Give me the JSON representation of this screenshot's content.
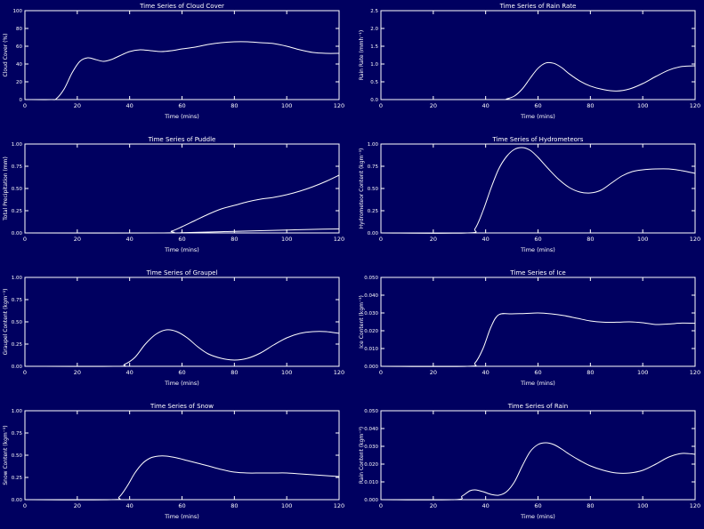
{
  "chart_data": [
    {
      "type": "line",
      "title": "Time Series of Cloud Cover",
      "xlabel": "Time (mins)",
      "ylabel": "Cloud Cover (%)",
      "xlim": [
        0,
        120
      ],
      "ylim": [
        0,
        100
      ],
      "xticks": [
        "0",
        "20",
        "40",
        "60",
        "80",
        "100",
        "120"
      ],
      "yticks": [
        "0",
        "20",
        "40",
        "60",
        "80",
        "100"
      ],
      "series": [
        {
          "x": [
            0,
            10,
            12,
            15,
            18,
            21,
            24,
            27,
            30,
            33,
            36,
            40,
            44,
            48,
            52,
            56,
            60,
            65,
            70,
            75,
            80,
            85,
            90,
            95,
            100,
            105,
            110,
            115,
            120
          ],
          "values": [
            0,
            0,
            1,
            12,
            30,
            43,
            47,
            45,
            43,
            45,
            49,
            54,
            56,
            55,
            54,
            55,
            57,
            59,
            62,
            64,
            65,
            65,
            64,
            63,
            60,
            56,
            53,
            52,
            52
          ]
        }
      ]
    },
    {
      "type": "line",
      "title": "Time Series of Rain Rate",
      "xlabel": "Time (mins)",
      "ylabel": "Rain Rate (mmh⁻¹)",
      "xlim": [
        0,
        120
      ],
      "ylim": [
        0,
        2.5
      ],
      "xticks": [
        "0",
        "20",
        "40",
        "60",
        "80",
        "100",
        "120"
      ],
      "yticks": [
        "0.0",
        "0.5",
        "1.0",
        "1.5",
        "2.0",
        "2.5"
      ],
      "series": [
        {
          "x": [
            0,
            45,
            48,
            51,
            54,
            57,
            60,
            63,
            66,
            69,
            72,
            76,
            80,
            85,
            90,
            95,
            100,
            105,
            110,
            115,
            120
          ],
          "values": [
            0,
            0,
            0.02,
            0.1,
            0.3,
            0.6,
            0.88,
            1.03,
            1.02,
            0.9,
            0.72,
            0.52,
            0.38,
            0.28,
            0.24,
            0.3,
            0.45,
            0.65,
            0.83,
            0.93,
            0.95
          ]
        }
      ]
    },
    {
      "type": "line",
      "title": "Time Series of Puddle",
      "xlabel": "Time (mins)",
      "ylabel": "Total Precipitation (mm)",
      "xlim": [
        0,
        120
      ],
      "ylim": [
        0,
        1.0
      ],
      "xticks": [
        "0",
        "20",
        "40",
        "60",
        "80",
        "100",
        "120"
      ],
      "yticks": [
        "0.00",
        "0.25",
        "0.50",
        "0.75",
        "1.00"
      ],
      "series": [
        {
          "x": [
            0,
            52,
            56,
            60,
            65,
            70,
            75,
            80,
            85,
            90,
            95,
            100,
            105,
            110,
            115,
            120
          ],
          "values": [
            0,
            0,
            0.02,
            0.07,
            0.14,
            0.21,
            0.27,
            0.31,
            0.35,
            0.38,
            0.4,
            0.43,
            0.47,
            0.52,
            0.58,
            0.65
          ]
        },
        {
          "x": [
            0,
            55,
            60,
            70,
            80,
            90,
            100,
            110,
            120
          ],
          "values": [
            0,
            0,
            0.003,
            0.01,
            0.018,
            0.025,
            0.033,
            0.04,
            0.045
          ]
        }
      ]
    },
    {
      "type": "line",
      "title": "Time Series of Hydrometeors",
      "xlabel": "Time (mins)",
      "ylabel": "Hydrometeor Content (kgm⁻³)",
      "xlim": [
        0,
        120
      ],
      "ylim": [
        0,
        1.0
      ],
      "xticks": [
        "0",
        "20",
        "40",
        "60",
        "80",
        "100",
        "120"
      ],
      "yticks": [
        "0.00",
        "0.25",
        "0.50",
        "0.75",
        "1.00"
      ],
      "series": [
        {
          "x": [
            0,
            33,
            36,
            39,
            42,
            45,
            48,
            51,
            54,
            57,
            60,
            64,
            68,
            72,
            76,
            80,
            84,
            88,
            92,
            96,
            100,
            105,
            110,
            115,
            120
          ],
          "values": [
            0,
            0,
            0.05,
            0.25,
            0.5,
            0.72,
            0.86,
            0.94,
            0.96,
            0.93,
            0.85,
            0.72,
            0.6,
            0.51,
            0.46,
            0.45,
            0.48,
            0.56,
            0.64,
            0.69,
            0.71,
            0.72,
            0.72,
            0.7,
            0.67
          ]
        }
      ]
    },
    {
      "type": "line",
      "title": "Time Series of Graupel",
      "xlabel": "Time (mins)",
      "ylabel": "Graupel Content (kgm⁻³)",
      "xlim": [
        0,
        120
      ],
      "ylim": [
        0,
        1.0
      ],
      "xticks": [
        "0",
        "20",
        "40",
        "60",
        "80",
        "100",
        "120"
      ],
      "yticks": [
        "0.00",
        "0.25",
        "0.50",
        "0.75",
        "1.00"
      ],
      "series": [
        {
          "x": [
            0,
            35,
            38,
            42,
            46,
            50,
            54,
            58,
            62,
            66,
            70,
            75,
            80,
            85,
            90,
            95,
            100,
            105,
            110,
            115,
            120
          ],
          "values": [
            0,
            0,
            0.02,
            0.1,
            0.25,
            0.36,
            0.41,
            0.39,
            0.32,
            0.22,
            0.14,
            0.09,
            0.07,
            0.09,
            0.15,
            0.24,
            0.32,
            0.37,
            0.39,
            0.39,
            0.37
          ]
        }
      ]
    },
    {
      "type": "line",
      "title": "Time Series of Ice",
      "xlabel": "Time (mins)",
      "ylabel": "Ice Content (kgm⁻³)",
      "xlim": [
        0,
        120
      ],
      "ylim": [
        0,
        0.05
      ],
      "xticks": [
        "0",
        "20",
        "40",
        "60",
        "80",
        "100",
        "120"
      ],
      "yticks": [
        "0.000",
        "0.010",
        "0.020",
        "0.030",
        "0.040",
        "0.050"
      ],
      "series": [
        {
          "x": [
            0,
            33,
            36,
            39,
            42,
            45,
            50,
            55,
            60,
            65,
            70,
            75,
            80,
            85,
            90,
            95,
            100,
            105,
            110,
            115,
            120
          ],
          "values": [
            0,
            0,
            0.002,
            0.01,
            0.022,
            0.029,
            0.0295,
            0.0297,
            0.03,
            0.0295,
            0.0285,
            0.027,
            0.0255,
            0.0248,
            0.0248,
            0.025,
            0.0245,
            0.0235,
            0.0238,
            0.0243,
            0.0242
          ]
        }
      ]
    },
    {
      "type": "line",
      "title": "Time Series of Snow",
      "xlabel": "Time (mins)",
      "ylabel": "Snow Content (kgm⁻³)",
      "xlim": [
        0,
        120
      ],
      "ylim": [
        0,
        1.0
      ],
      "xticks": [
        "0",
        "20",
        "40",
        "60",
        "80",
        "100",
        "120"
      ],
      "yticks": [
        "0.00",
        "0.25",
        "0.50",
        "0.75",
        "1.00"
      ],
      "series": [
        {
          "x": [
            0,
            33,
            36,
            39,
            42,
            45,
            48,
            51,
            54,
            58,
            62,
            66,
            70,
            75,
            80,
            85,
            90,
            95,
            100,
            105,
            110,
            115,
            120
          ],
          "values": [
            0,
            0,
            0.03,
            0.15,
            0.3,
            0.41,
            0.47,
            0.49,
            0.49,
            0.47,
            0.44,
            0.41,
            0.38,
            0.34,
            0.31,
            0.3,
            0.3,
            0.3,
            0.3,
            0.29,
            0.28,
            0.27,
            0.26
          ]
        }
      ]
    },
    {
      "type": "line",
      "title": "Time Series of Rain",
      "xlabel": "Time (mins)",
      "ylabel": "Rain Content (kgm⁻³)",
      "xlim": [
        0,
        120
      ],
      "ylim": [
        0,
        0.05
      ],
      "xticks": [
        "0",
        "20",
        "40",
        "60",
        "80",
        "100",
        "120"
      ],
      "yticks": [
        "0.000",
        "0.010",
        "0.020",
        "0.030",
        "0.040",
        "0.050"
      ],
      "series": [
        {
          "x": [
            0,
            28,
            31,
            34,
            36,
            39,
            42,
            45,
            48,
            51,
            54,
            57,
            60,
            63,
            66,
            69,
            72,
            76,
            80,
            85,
            90,
            95,
            100,
            105,
            110,
            115,
            120
          ],
          "values": [
            0,
            0,
            0.002,
            0.005,
            0.0055,
            0.0045,
            0.003,
            0.0025,
            0.0045,
            0.01,
            0.019,
            0.027,
            0.031,
            0.032,
            0.031,
            0.0285,
            0.0255,
            0.022,
            0.019,
            0.0165,
            0.015,
            0.015,
            0.0165,
            0.02,
            0.024,
            0.026,
            0.0255
          ]
        }
      ]
    }
  ],
  "colors": {
    "background": "#000060",
    "foreground": "#ffffff"
  }
}
